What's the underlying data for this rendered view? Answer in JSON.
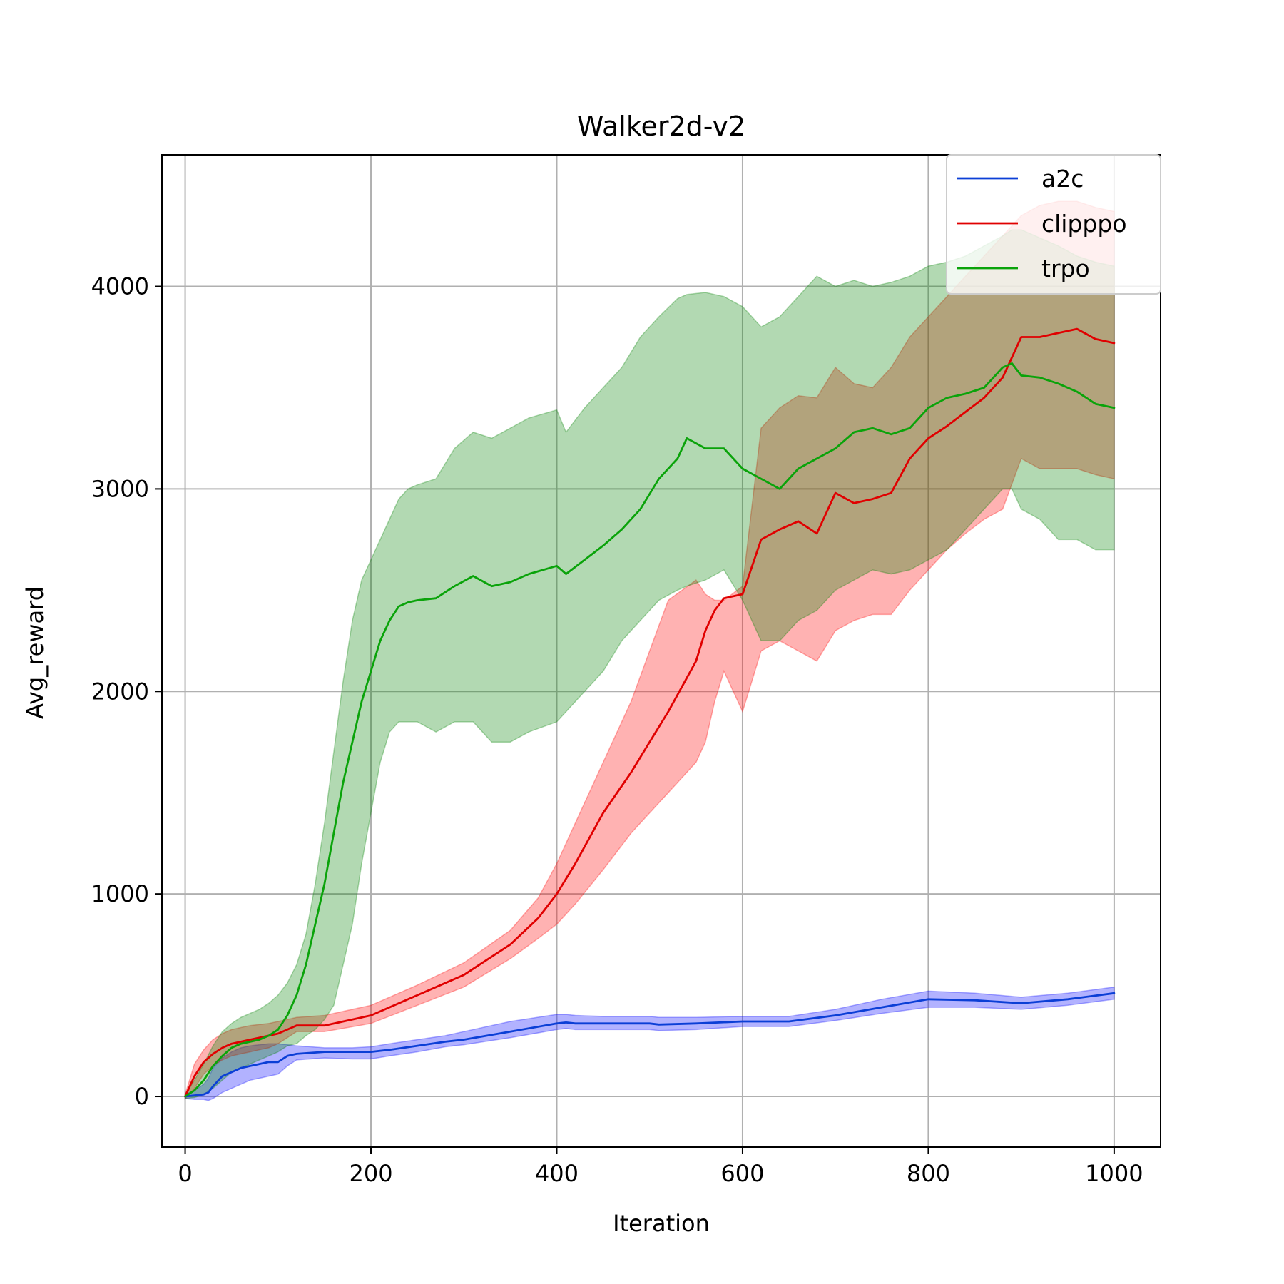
{
  "chart_data": {
    "type": "line",
    "title": "Walker2d-v2",
    "xlabel": "Iteration",
    "ylabel": "Avg_reward",
    "xlim": [
      -25,
      1050
    ],
    "ylim": [
      -250,
      4650
    ],
    "xticks": [
      0,
      200,
      400,
      600,
      800,
      1000
    ],
    "yticks": [
      0,
      1000,
      2000,
      3000,
      4000
    ],
    "xtick_labels": [
      "0",
      "200",
      "400",
      "600",
      "800",
      "1000"
    ],
    "ytick_labels": [
      "0",
      "1000",
      "2000",
      "3000",
      "4000"
    ],
    "grid": true,
    "legend_position": "top-right",
    "series": [
      {
        "name": "a2c",
        "color": "#0b3fd6",
        "fill_color": "#0000ff",
        "x": [
          0,
          10,
          20,
          25,
          30,
          40,
          50,
          60,
          70,
          80,
          90,
          100,
          110,
          120,
          150,
          180,
          200,
          220,
          250,
          280,
          300,
          350,
          400,
          410,
          420,
          450,
          500,
          510,
          550,
          600,
          650,
          700,
          750,
          800,
          850,
          900,
          950,
          1000
        ],
        "y": [
          0,
          5,
          10,
          20,
          50,
          100,
          120,
          140,
          150,
          160,
          170,
          170,
          200,
          210,
          220,
          220,
          220,
          230,
          250,
          270,
          280,
          320,
          360,
          365,
          360,
          360,
          360,
          355,
          360,
          370,
          370,
          400,
          440,
          480,
          475,
          460,
          480,
          510
        ],
        "upper": [
          10,
          30,
          60,
          90,
          140,
          190,
          220,
          240,
          250,
          255,
          260,
          260,
          255,
          250,
          240,
          240,
          245,
          260,
          280,
          300,
          320,
          370,
          405,
          405,
          400,
          395,
          395,
          390,
          390,
          395,
          395,
          430,
          480,
          520,
          510,
          490,
          510,
          540
        ],
        "lower": [
          -10,
          -15,
          -15,
          -20,
          -10,
          20,
          40,
          60,
          80,
          90,
          100,
          110,
          150,
          180,
          190,
          185,
          185,
          200,
          220,
          245,
          255,
          290,
          330,
          335,
          330,
          330,
          330,
          325,
          330,
          345,
          345,
          375,
          410,
          440,
          440,
          430,
          450,
          480
        ]
      },
      {
        "name": "clipppo",
        "color": "#e00000",
        "fill_color": "#ff0000",
        "x": [
          0,
          10,
          20,
          30,
          40,
          50,
          60,
          70,
          80,
          90,
          100,
          110,
          120,
          150,
          200,
          250,
          300,
          350,
          380,
          400,
          420,
          450,
          480,
          500,
          520,
          550,
          560,
          570,
          580,
          600,
          620,
          640,
          660,
          680,
          700,
          720,
          740,
          760,
          780,
          800,
          820,
          840,
          860,
          880,
          900,
          920,
          940,
          960,
          980,
          1000
        ],
        "y": [
          0,
          100,
          170,
          210,
          240,
          260,
          270,
          280,
          290,
          300,
          310,
          330,
          350,
          350,
          400,
          500,
          600,
          750,
          880,
          1000,
          1150,
          1400,
          1600,
          1750,
          1900,
          2150,
          2300,
          2400,
          2460,
          2480,
          2750,
          2800,
          2840,
          2780,
          2980,
          2930,
          2950,
          2980,
          3150,
          3250,
          3310,
          3380,
          3450,
          3550,
          3750,
          3750,
          3770,
          3790,
          3740,
          3720
        ],
        "upper": [
          10,
          160,
          230,
          280,
          310,
          330,
          340,
          350,
          355,
          360,
          370,
          380,
          390,
          400,
          450,
          550,
          660,
          820,
          980,
          1150,
          1350,
          1650,
          1950,
          2200,
          2450,
          2550,
          2480,
          2450,
          2450,
          2520,
          3300,
          3400,
          3460,
          3450,
          3600,
          3520,
          3500,
          3600,
          3750,
          3850,
          3950,
          4050,
          4150,
          4250,
          4350,
          4400,
          4420,
          4420,
          4390,
          4370
        ],
        "lower": [
          -10,
          40,
          110,
          150,
          180,
          200,
          210,
          220,
          230,
          240,
          260,
          290,
          320,
          320,
          360,
          450,
          540,
          680,
          780,
          850,
          950,
          1120,
          1300,
          1400,
          1500,
          1650,
          1750,
          1950,
          2100,
          1900,
          2200,
          2250,
          2200,
          2150,
          2300,
          2350,
          2380,
          2380,
          2500,
          2600,
          2700,
          2780,
          2850,
          2900,
          3150,
          3100,
          3100,
          3100,
          3070,
          3050
        ]
      },
      {
        "name": "trpo",
        "color": "#0aa30a",
        "fill_color": "#008000",
        "x": [
          0,
          10,
          20,
          30,
          40,
          50,
          60,
          70,
          80,
          90,
          100,
          110,
          120,
          130,
          140,
          150,
          160,
          170,
          180,
          190,
          200,
          210,
          220,
          230,
          240,
          250,
          270,
          290,
          310,
          330,
          350,
          370,
          400,
          410,
          430,
          450,
          470,
          490,
          510,
          530,
          540,
          560,
          580,
          600,
          620,
          640,
          660,
          680,
          700,
          720,
          740,
          760,
          780,
          800,
          820,
          840,
          860,
          880,
          890,
          900,
          920,
          940,
          960,
          980,
          1000
        ],
        "y": [
          0,
          30,
          80,
          150,
          200,
          240,
          260,
          270,
          280,
          300,
          330,
          400,
          500,
          650,
          850,
          1050,
          1300,
          1550,
          1750,
          1950,
          2100,
          2250,
          2350,
          2420,
          2440,
          2450,
          2460,
          2520,
          2570,
          2520,
          2540,
          2580,
          2620,
          2580,
          2650,
          2720,
          2800,
          2900,
          3050,
          3150,
          3250,
          3200,
          3200,
          3100,
          3050,
          3000,
          3100,
          3150,
          3200,
          3280,
          3300,
          3270,
          3300,
          3400,
          3450,
          3470,
          3500,
          3600,
          3620,
          3560,
          3550,
          3520,
          3480,
          3420,
          3400
        ],
        "upper": [
          10,
          80,
          160,
          250,
          320,
          360,
          390,
          410,
          430,
          460,
          500,
          560,
          650,
          800,
          1050,
          1350,
          1700,
          2050,
          2350,
          2550,
          2650,
          2750,
          2850,
          2950,
          3000,
          3020,
          3050,
          3200,
          3280,
          3250,
          3300,
          3350,
          3390,
          3280,
          3400,
          3500,
          3600,
          3750,
          3850,
          3940,
          3960,
          3970,
          3950,
          3900,
          3800,
          3850,
          3950,
          4050,
          4000,
          4030,
          4000,
          4020,
          4050,
          4100,
          4120,
          4150,
          4200,
          4250,
          4280,
          4280,
          4240,
          4200,
          4150,
          4120,
          4100
        ],
        "lower": [
          -10,
          -5,
          10,
          40,
          80,
          120,
          140,
          160,
          180,
          200,
          220,
          250,
          260,
          300,
          330,
          380,
          450,
          650,
          850,
          1150,
          1400,
          1650,
          1800,
          1850,
          1850,
          1850,
          1800,
          1850,
          1850,
          1750,
          1750,
          1800,
          1850,
          1900,
          2000,
          2100,
          2250,
          2350,
          2450,
          2500,
          2520,
          2550,
          2600,
          2450,
          2250,
          2250,
          2350,
          2400,
          2500,
          2550,
          2600,
          2580,
          2600,
          2650,
          2700,
          2800,
          2900,
          3000,
          3000,
          2900,
          2850,
          2750,
          2750,
          2700,
          2700
        ]
      }
    ]
  }
}
